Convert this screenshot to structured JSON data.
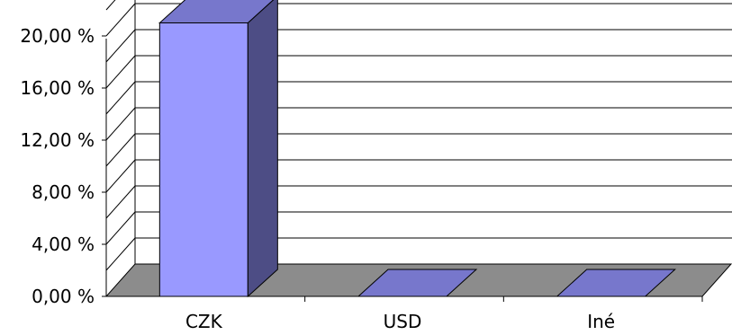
{
  "chart_data": {
    "type": "bar",
    "style": "3d-column",
    "categories": [
      "CZK",
      "USD",
      "Iné"
    ],
    "series": [
      {
        "values": [
          21.0,
          0.0,
          0.0
        ]
      }
    ],
    "yticks": [
      "0,00 %",
      "4,00 %",
      "8,00 %",
      "12,00 %",
      "16,00 %",
      "20,00 %"
    ],
    "ylim": [
      0,
      22
    ],
    "title": "",
    "xlabel": "",
    "ylabel": "",
    "grid": true,
    "legend": "none",
    "colors": {
      "bar_front": "#9999ff",
      "bar_top": "#7777cc",
      "bar_side": "#4d4d85",
      "floor": "#8c8c8c",
      "grid": "#000000",
      "text": "#000000"
    }
  }
}
